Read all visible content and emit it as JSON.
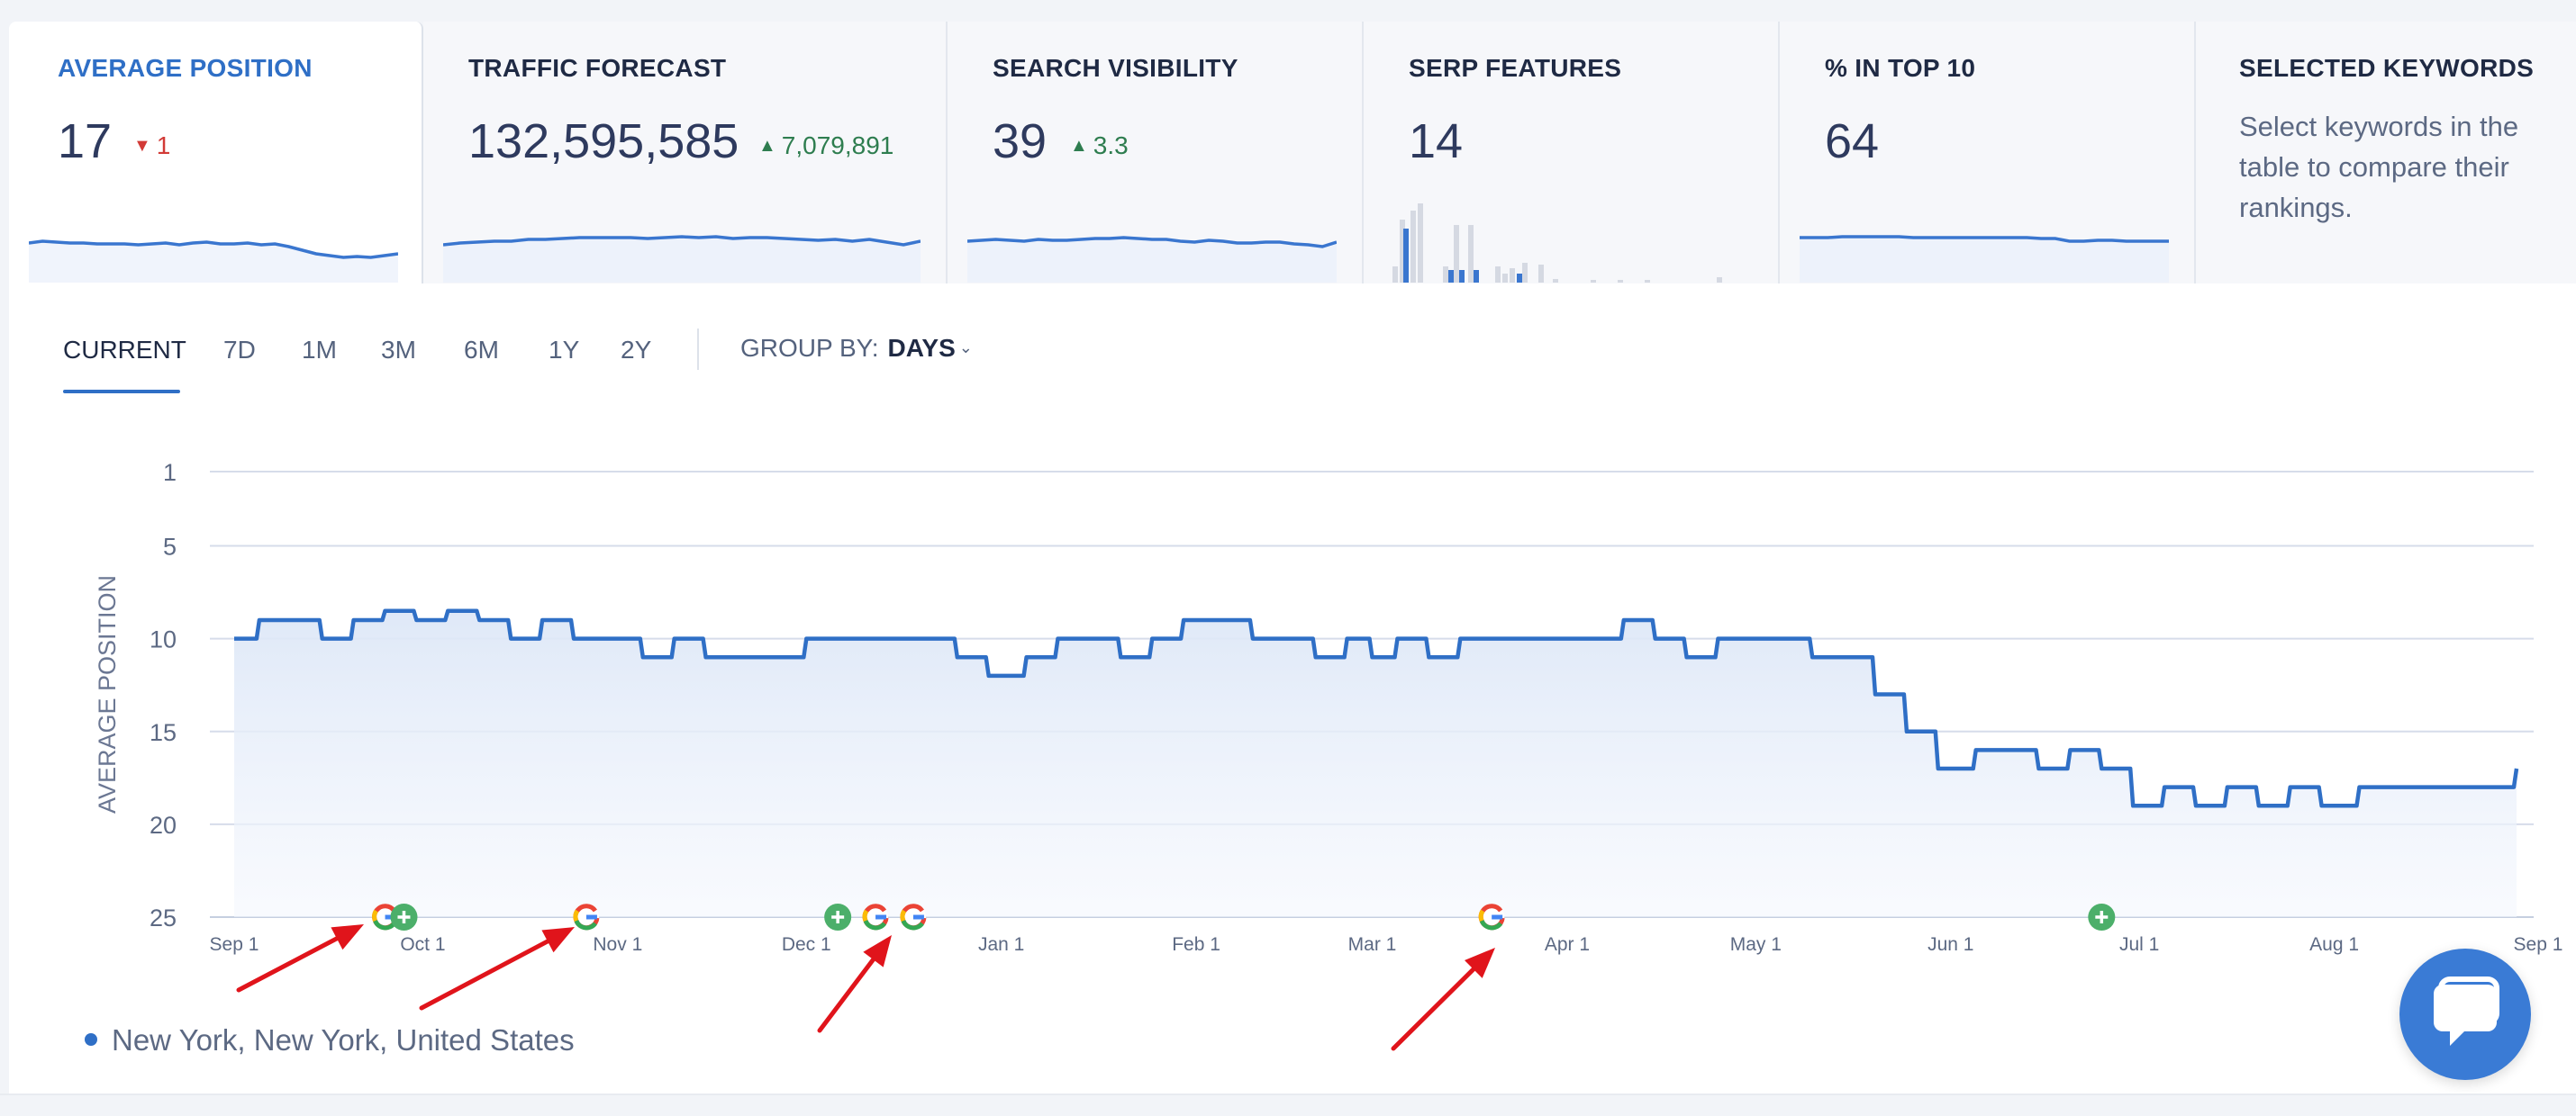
{
  "metrics": [
    {
      "label": "AVERAGE POSITION",
      "value": "17",
      "delta": "1",
      "delta_dir": "down"
    },
    {
      "label": "TRAFFIC FORECAST",
      "value": "132,595,585",
      "delta": "7,079,891",
      "delta_dir": "up"
    },
    {
      "label": "SEARCH VISIBILITY",
      "value": "39",
      "delta": "3.3",
      "delta_dir": "up"
    },
    {
      "label": "SERP FEATURES",
      "value": "14"
    },
    {
      "label": "% IN TOP 10",
      "value": "64"
    },
    {
      "label": "SELECTED KEYWORDS",
      "description": "Select keywords in the table to compare their rankings."
    }
  ],
  "tabs": [
    {
      "label": "CURRENT",
      "active": true
    },
    {
      "label": "7D"
    },
    {
      "label": "1M"
    },
    {
      "label": "3M"
    },
    {
      "label": "6M"
    },
    {
      "label": "1Y"
    },
    {
      "label": "2Y"
    }
  ],
  "group_by": {
    "label": "GROUP BY:",
    "value": "DAYS"
  },
  "legend": {
    "location": "New York, New York, United States"
  },
  "colors": {
    "accent": "#2f6fc6",
    "down": "#d23a36",
    "up": "#2e7d4f",
    "event_green": "#4caf6a",
    "arrow": "#e0141b"
  },
  "icons": {
    "google_update": "google-g-icon",
    "add_note": "plus-circle-icon",
    "chat": "chat-bubble-icon"
  },
  "chart_data": {
    "type": "line",
    "ylabel": "AVERAGE POSITION",
    "y_inverted": true,
    "ylim": [
      1,
      25
    ],
    "yticks": [
      1,
      5,
      10,
      15,
      20,
      25
    ],
    "xticks": [
      "Sep 1",
      "Oct 1",
      "Nov 1",
      "Dec 1",
      "Jan 1",
      "Feb 1",
      "Mar 1",
      "Apr 1",
      "May 1",
      "Jun 1",
      "Jul 1",
      "Aug 1",
      "Sep 1"
    ],
    "grid": true,
    "series": [
      {
        "name": "New York, New York, United States",
        "x": [
          "Sep 1",
          "Sep 5",
          "Sep 10",
          "Sep 15",
          "Sep 20",
          "Sep 25",
          "Sep 30",
          "Oct 5",
          "Oct 10",
          "Oct 15",
          "Oct 20",
          "Oct 25",
          "Oct 30",
          "Nov 5",
          "Nov 10",
          "Nov 15",
          "Nov 20",
          "Nov 25",
          "Dec 1",
          "Dec 5",
          "Dec 10",
          "Dec 15",
          "Dec 20",
          "Dec 25",
          "Dec 30",
          "Jan 5",
          "Jan 10",
          "Jan 15",
          "Jan 20",
          "Jan 25",
          "Jan 30",
          "Feb 5",
          "Feb 10",
          "Feb 15",
          "Feb 20",
          "Feb 25",
          "Mar 1",
          "Mar 5",
          "Mar 10",
          "Mar 15",
          "Mar 20",
          "Mar 25",
          "Mar 30",
          "Apr 5",
          "Apr 10",
          "Apr 15",
          "Apr 20",
          "Apr 25",
          "May 1",
          "May 5",
          "May 10",
          "May 15",
          "May 20",
          "May 25",
          "May 30",
          "Jun 5",
          "Jun 10",
          "Jun 15",
          "Jun 20",
          "Jun 25",
          "Jun 30",
          "Jul 5",
          "Jul 10",
          "Jul 15",
          "Jul 20",
          "Jul 25",
          "Jul 30",
          "Aug 5",
          "Aug 10",
          "Aug 15",
          "Aug 20",
          "Aug 25",
          "Aug 30"
        ],
        "values": [
          10,
          9,
          9,
          10,
          9,
          8.5,
          9,
          8.5,
          9,
          10,
          9,
          10,
          10,
          11,
          10,
          11,
          11,
          11,
          10,
          10,
          10,
          10,
          10,
          11,
          12,
          11,
          10,
          10,
          11,
          10,
          9,
          9,
          10,
          10,
          11,
          10,
          11,
          10,
          11,
          10,
          10,
          10,
          10,
          10,
          9,
          10,
          11,
          10,
          10,
          10,
          11,
          11,
          13,
          15,
          17,
          16,
          16,
          17,
          16,
          17,
          19,
          18,
          19,
          18,
          19,
          18,
          19,
          18,
          18,
          18,
          18,
          18,
          17
        ]
      }
    ],
    "events": [
      {
        "type": "google_update",
        "x": "Sep 25"
      },
      {
        "type": "note",
        "x": "Sep 28"
      },
      {
        "type": "google_update",
        "x": "Oct 27"
      },
      {
        "type": "note",
        "x": "Dec 6"
      },
      {
        "type": "google_update",
        "x": "Dec 12"
      },
      {
        "type": "google_update",
        "x": "Dec 18"
      },
      {
        "type": "google_update",
        "x": "Mar 20"
      },
      {
        "type": "note",
        "x": "Jun 25"
      }
    ]
  }
}
